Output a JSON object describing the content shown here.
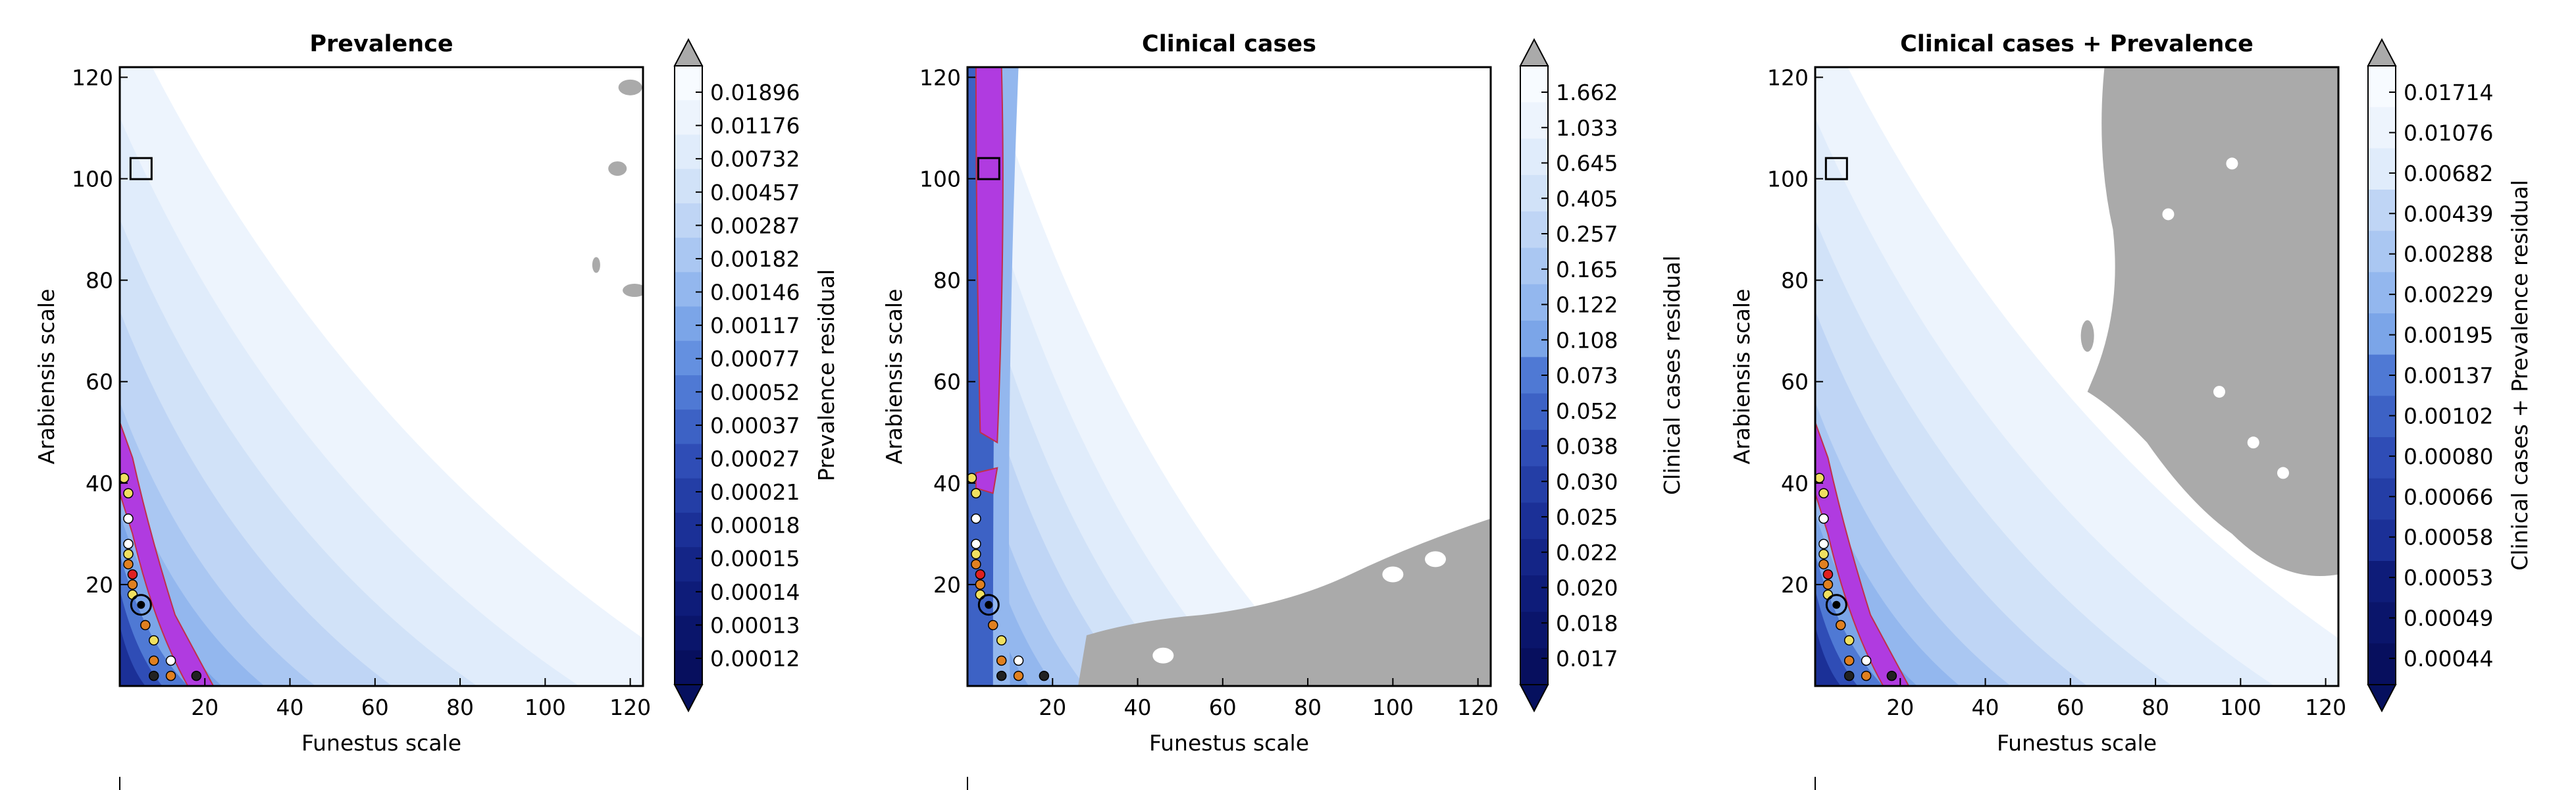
{
  "chart_data": [
    {
      "type": "heatmap",
      "title": "Prevalence",
      "xlabel": "Funestus scale",
      "ylabel": "Arabiensis scale",
      "xlim": [
        0,
        123
      ],
      "ylim": [
        0,
        122
      ],
      "xticks": [
        20,
        40,
        60,
        80,
        100,
        120
      ],
      "yticks": [
        20,
        40,
        60,
        80,
        100,
        120
      ],
      "colorbar_label": "Prevalence residual",
      "colorbar_ticks": [
        "0.01896",
        "0.01176",
        "0.00732",
        "0.00457",
        "0.00287",
        "0.00182",
        "0.00146",
        "0.00117",
        "0.00077",
        "0.00052",
        "0.00037",
        "0.00027",
        "0.00021",
        "0.00018",
        "0.00015",
        "0.00014",
        "0.00013",
        "0.00012"
      ],
      "best_fit": {
        "x": 5,
        "y": 16
      },
      "square_marker": {
        "x": 5,
        "y": 102
      },
      "colors": {
        "highlight": "#b03be0",
        "excluded": "#aaaaaa"
      }
    },
    {
      "type": "heatmap",
      "title": "Clinical cases",
      "xlabel": "Funestus scale",
      "ylabel": "Arabiensis scale",
      "xlim": [
        0,
        123
      ],
      "ylim": [
        0,
        122
      ],
      "xticks": [
        20,
        40,
        60,
        80,
        100,
        120
      ],
      "yticks": [
        20,
        40,
        60,
        80,
        100,
        120
      ],
      "colorbar_label": "Clinical cases residual",
      "colorbar_ticks": [
        "1.662",
        "1.033",
        "0.645",
        "0.405",
        "0.257",
        "0.165",
        "0.122",
        "0.108",
        "0.073",
        "0.052",
        "0.038",
        "0.030",
        "0.025",
        "0.022",
        "0.020",
        "0.018",
        "0.017"
      ],
      "best_fit": {
        "x": 5,
        "y": 16
      },
      "square_marker": {
        "x": 5,
        "y": 102
      },
      "colors": {
        "highlight": "#b03be0",
        "excluded": "#aaaaaa"
      }
    },
    {
      "type": "heatmap",
      "title": "Clinical cases + Prevalence",
      "xlabel": "Funestus scale",
      "ylabel": "Arabiensis scale",
      "xlim": [
        0,
        123
      ],
      "ylim": [
        0,
        122
      ],
      "xticks": [
        20,
        40,
        60,
        80,
        100,
        120
      ],
      "yticks": [
        20,
        40,
        60,
        80,
        100,
        120
      ],
      "colorbar_label": "Clinical cases + Prevalence residual",
      "colorbar_ticks": [
        "0.01714",
        "0.01076",
        "0.00682",
        "0.00439",
        "0.00288",
        "0.00229",
        "0.00195",
        "0.00137",
        "0.00102",
        "0.00080",
        "0.00066",
        "0.00058",
        "0.00053",
        "0.00049",
        "0.00044"
      ],
      "best_fit": {
        "x": 5,
        "y": 16
      },
      "square_marker": {
        "x": 5,
        "y": 102
      },
      "colors": {
        "highlight": "#b03be0",
        "excluded": "#aaaaaa"
      }
    }
  ]
}
